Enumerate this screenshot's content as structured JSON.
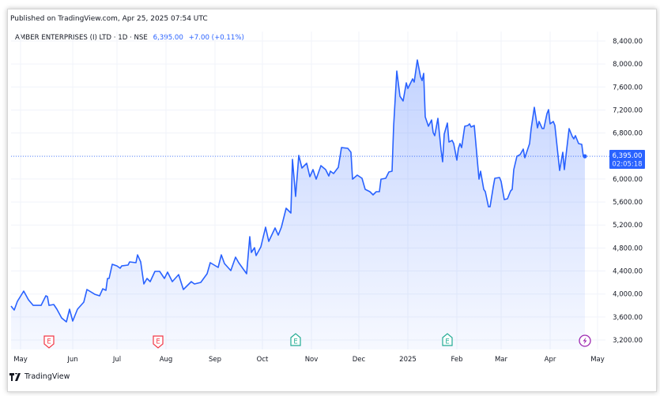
{
  "header": {
    "published": "Published on TradingView.com, Apr 25, 2025 07:54 UTC"
  },
  "legend": {
    "symbol": "AMBER ENTERPRISES (I) LTD · 1D · NSE",
    "price": "6,395.00",
    "change": "+7.00 (+0.11%)"
  },
  "price_label": {
    "price": "6,395.00",
    "countdown": "02:05:18"
  },
  "brand": {
    "name": "TradingView",
    "icon": "tradingview-logo-icon"
  },
  "colors": {
    "line": "#2962ff",
    "fill": "#2962ff",
    "earnings_past": "#f23645",
    "earnings_green": "#22ab94",
    "dividend": "#9c27b0"
  },
  "chart_data": {
    "type": "area",
    "ylim": [
      3200,
      8400
    ],
    "y_ticks": [
      "8,400.00",
      "8,000.00",
      "7,600.00",
      "7,200.00",
      "6,800.00",
      "6,400.00",
      "6,000.00",
      "5,600.00",
      "5,200.00",
      "4,800.00",
      "4,400.00",
      "4,000.00",
      "3,600.00",
      "3,200.00"
    ],
    "y_tick_values": [
      8400,
      8000,
      7600,
      7200,
      6800,
      6400,
      6000,
      5600,
      5200,
      4800,
      4400,
      4000,
      3600,
      3200
    ],
    "x_ticks": [
      [
        "2024-05-01",
        "May"
      ],
      [
        "2024-06-03",
        "Jun"
      ],
      [
        "2024-07-01",
        "Jul"
      ],
      [
        "2024-08-01",
        "Aug"
      ],
      [
        "2024-09-01",
        "Sep"
      ],
      [
        "2024-10-01",
        "Oct"
      ],
      [
        "2024-11-01",
        "Nov"
      ],
      [
        "2024-12-01",
        "Dec"
      ],
      [
        "2025-01-01",
        "2025"
      ],
      [
        "2025-02-01",
        "Feb"
      ],
      [
        "2025-03-01",
        "Mar"
      ],
      [
        "2025-04-01",
        "Apr"
      ],
      [
        "2025-05-01",
        "May"
      ]
    ],
    "last_price": 6395,
    "grid": true,
    "events": [
      {
        "date": "2024-05-21",
        "type": "earnings",
        "label": "E",
        "color": "#f23645"
      },
      {
        "date": "2024-07-29",
        "type": "earnings",
        "label": "E",
        "color": "#f23645"
      },
      {
        "date": "2024-10-24",
        "type": "earnings",
        "label": "E",
        "color": "#22ab94"
      },
      {
        "date": "2025-01-28",
        "type": "earnings",
        "label": "E",
        "color": "#22ab94"
      },
      {
        "date": "2025-04-25",
        "type": "dividend",
        "label": "⚡",
        "color": "#9c27b0"
      }
    ],
    "points": [
      [
        "2024-04-27",
        3790
      ],
      [
        "2024-04-29",
        3721
      ],
      [
        "2024-05-01",
        3872
      ],
      [
        "2024-05-05",
        4050
      ],
      [
        "2024-05-08",
        3900
      ],
      [
        "2024-05-11",
        3803
      ],
      [
        "2024-05-16",
        3803
      ],
      [
        "2024-05-19",
        3968
      ],
      [
        "2024-05-20",
        3954
      ],
      [
        "2024-05-21",
        3803
      ],
      [
        "2024-05-24",
        3817
      ],
      [
        "2024-05-26",
        3735
      ],
      [
        "2024-05-29",
        3583
      ],
      [
        "2024-06-01",
        3515
      ],
      [
        "2024-06-03",
        3735
      ],
      [
        "2024-06-05",
        3529
      ],
      [
        "2024-06-08",
        3735
      ],
      [
        "2024-06-12",
        3858
      ],
      [
        "2024-06-14",
        4078
      ],
      [
        "2024-06-19",
        3995
      ],
      [
        "2024-06-22",
        3968
      ],
      [
        "2024-06-24",
        4091
      ],
      [
        "2024-06-26",
        4064
      ],
      [
        "2024-06-27",
        4270
      ],
      [
        "2024-06-28",
        4270
      ],
      [
        "2024-06-30",
        4517
      ],
      [
        "2024-07-03",
        4489
      ],
      [
        "2024-07-05",
        4448
      ],
      [
        "2024-07-06",
        4489
      ],
      [
        "2024-07-10",
        4503
      ],
      [
        "2024-07-11",
        4558
      ],
      [
        "2024-07-15",
        4544
      ],
      [
        "2024-07-16",
        4681
      ],
      [
        "2024-07-18",
        4558
      ],
      [
        "2024-07-20",
        4174
      ],
      [
        "2024-07-22",
        4270
      ],
      [
        "2024-07-24",
        4215
      ],
      [
        "2024-07-27",
        4393
      ],
      [
        "2024-07-30",
        4393
      ],
      [
        "2024-08-02",
        4270
      ],
      [
        "2024-08-04",
        4380
      ],
      [
        "2024-08-07",
        4215
      ],
      [
        "2024-08-11",
        4338
      ],
      [
        "2024-08-14",
        4078
      ],
      [
        "2024-08-19",
        4215
      ],
      [
        "2024-08-21",
        4174
      ],
      [
        "2024-08-25",
        4201
      ],
      [
        "2024-08-29",
        4352
      ],
      [
        "2024-08-31",
        4544
      ],
      [
        "2024-09-05",
        4462
      ],
      [
        "2024-09-07",
        4681
      ],
      [
        "2024-09-09",
        4530
      ],
      [
        "2024-09-13",
        4407
      ],
      [
        "2024-09-16",
        4640
      ],
      [
        "2024-09-18",
        4544
      ],
      [
        "2024-09-23",
        4352
      ],
      [
        "2024-09-25",
        4997
      ],
      [
        "2024-09-26",
        4722
      ],
      [
        "2024-09-28",
        4805
      ],
      [
        "2024-09-29",
        4668
      ],
      [
        "2024-10-02",
        4819
      ],
      [
        "2024-10-05",
        5162
      ],
      [
        "2024-10-07",
        4915
      ],
      [
        "2024-10-11",
        5148
      ],
      [
        "2024-10-13",
        5024
      ],
      [
        "2024-10-15",
        5162
      ],
      [
        "2024-10-18",
        5491
      ],
      [
        "2024-10-21",
        5409
      ],
      [
        "2024-10-22",
        6342
      ],
      [
        "2024-10-24",
        5697
      ],
      [
        "2024-10-26",
        6410
      ],
      [
        "2024-10-28",
        6191
      ],
      [
        "2024-10-31",
        6273
      ],
      [
        "2024-11-02",
        6040
      ],
      [
        "2024-11-04",
        6163
      ],
      [
        "2024-11-06",
        5998
      ],
      [
        "2024-11-09",
        6232
      ],
      [
        "2024-11-12",
        6163
      ],
      [
        "2024-11-14",
        6053
      ],
      [
        "2024-11-15",
        6136
      ],
      [
        "2024-11-17",
        6095
      ],
      [
        "2024-11-20",
        6204
      ],
      [
        "2024-11-22",
        6547
      ],
      [
        "2024-11-26",
        6534
      ],
      [
        "2024-11-28",
        6465
      ],
      [
        "2024-11-29",
        5998
      ],
      [
        "2024-12-02",
        6067
      ],
      [
        "2024-12-05",
        6012
      ],
      [
        "2024-12-07",
        5820
      ],
      [
        "2024-12-10",
        5779
      ],
      [
        "2024-12-12",
        5724
      ],
      [
        "2024-12-14",
        5779
      ],
      [
        "2024-12-16",
        5779
      ],
      [
        "2024-12-17",
        5998
      ],
      [
        "2024-12-20",
        6012
      ],
      [
        "2024-12-22",
        6122
      ],
      [
        "2024-12-24",
        6136
      ],
      [
        "2024-12-25",
        6918
      ],
      [
        "2024-12-27",
        7879
      ],
      [
        "2024-12-29",
        7440
      ],
      [
        "2024-12-31",
        7357
      ],
      [
        "2025-01-02",
        7672
      ],
      [
        "2025-01-03",
        7576
      ],
      [
        "2025-01-06",
        7741
      ],
      [
        "2025-01-07",
        7686
      ],
      [
        "2025-01-09",
        8071
      ],
      [
        "2025-01-11",
        7782
      ],
      [
        "2025-01-12",
        7713
      ],
      [
        "2025-01-13",
        7837
      ],
      [
        "2025-01-14",
        7082
      ],
      [
        "2025-01-16",
        6918
      ],
      [
        "2025-01-18",
        7027
      ],
      [
        "2025-01-19",
        6808
      ],
      [
        "2025-01-20",
        6753
      ],
      [
        "2025-01-22",
        7055
      ],
      [
        "2025-01-24",
        6506
      ],
      [
        "2025-01-25",
        6300
      ],
      [
        "2025-01-26",
        6781
      ],
      [
        "2025-01-28",
        6973
      ],
      [
        "2025-01-29",
        6643
      ],
      [
        "2025-01-31",
        6671
      ],
      [
        "2025-02-01",
        6616
      ],
      [
        "2025-02-03",
        6328
      ],
      [
        "2025-02-04",
        6534
      ],
      [
        "2025-02-05",
        6616
      ],
      [
        "2025-02-06",
        6547
      ],
      [
        "2025-02-08",
        6918
      ],
      [
        "2025-02-10",
        6931
      ],
      [
        "2025-02-11",
        6959
      ],
      [
        "2025-02-12",
        6904
      ],
      [
        "2025-02-14",
        6931
      ],
      [
        "2025-02-17",
        5998
      ],
      [
        "2025-02-18",
        6136
      ],
      [
        "2025-02-20",
        5820
      ],
      [
        "2025-02-21",
        5779
      ],
      [
        "2025-02-23",
        5518
      ],
      [
        "2025-02-24",
        5518
      ],
      [
        "2025-02-26",
        5861
      ],
      [
        "2025-02-27",
        6012
      ],
      [
        "2025-03-02",
        6026
      ],
      [
        "2025-03-03",
        5957
      ],
      [
        "2025-03-05",
        5642
      ],
      [
        "2025-03-07",
        5656
      ],
      [
        "2025-03-09",
        5793
      ],
      [
        "2025-03-10",
        5820
      ],
      [
        "2025-03-11",
        6163
      ],
      [
        "2025-03-13",
        6396
      ],
      [
        "2025-03-15",
        6424
      ],
      [
        "2025-03-17",
        6520
      ],
      [
        "2025-03-18",
        6369
      ],
      [
        "2025-03-21",
        6616
      ],
      [
        "2025-03-22",
        6877
      ],
      [
        "2025-03-24",
        7247
      ],
      [
        "2025-03-26",
        6890
      ],
      [
        "2025-03-27",
        7000
      ],
      [
        "2025-03-29",
        6877
      ],
      [
        "2025-03-30",
        6877
      ],
      [
        "2025-04-01",
        7137
      ],
      [
        "2025-04-02",
        7206
      ],
      [
        "2025-04-03",
        6959
      ],
      [
        "2025-04-05",
        7000
      ],
      [
        "2025-04-06",
        6931
      ],
      [
        "2025-04-09",
        6149
      ],
      [
        "2025-04-11",
        6465
      ],
      [
        "2025-04-12",
        6163
      ],
      [
        "2025-04-15",
        6877
      ],
      [
        "2025-04-17",
        6740
      ],
      [
        "2025-04-18",
        6698
      ],
      [
        "2025-04-19",
        6753
      ],
      [
        "2025-04-21",
        6616
      ],
      [
        "2025-04-23",
        6602
      ],
      [
        "2025-04-24",
        6396
      ],
      [
        "2025-04-25",
        6395
      ]
    ]
  }
}
